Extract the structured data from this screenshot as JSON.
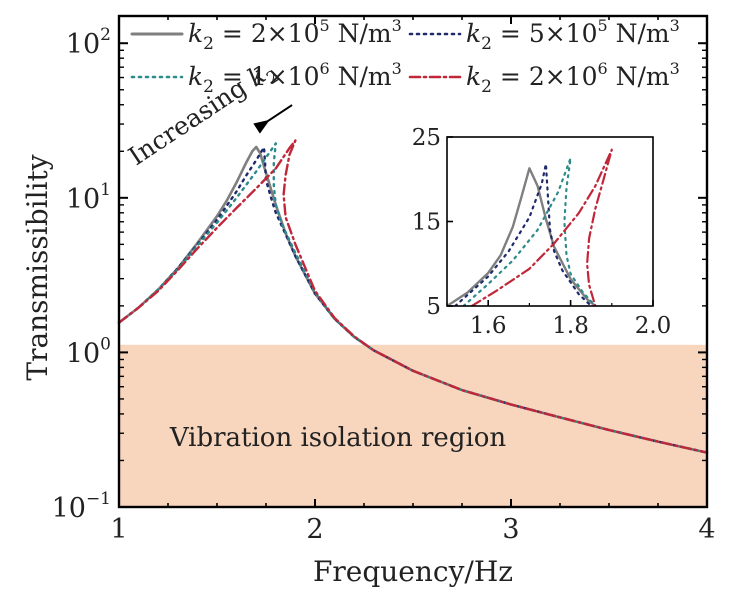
{
  "chart_data": [
    {
      "type": "line",
      "xlabel": "Frequency/Hz",
      "ylabel": "Transmissibility",
      "x_scale": "linear",
      "y_scale": "log",
      "xlim": [
        1,
        4
      ],
      "ylim": [
        0.1,
        150
      ],
      "x_ticks": [
        {
          "value": 1,
          "label": "1"
        },
        {
          "value": 2,
          "label": "2"
        },
        {
          "value": 3,
          "label": "3"
        },
        {
          "value": 4,
          "label": "4"
        }
      ],
      "y_ticks": [
        {
          "value": 0.1,
          "base": "10",
          "exp": "−1"
        },
        {
          "value": 1,
          "base": "10",
          "exp": "0"
        },
        {
          "value": 10,
          "base": "10",
          "exp": "1"
        },
        {
          "value": 100,
          "base": "10",
          "exp": "2"
        }
      ],
      "grid": false,
      "legend_position": "top",
      "shaded_region": {
        "y_from": 0.1,
        "y_to": 1.12,
        "color": "#f8d5bd",
        "label": "Vibration isolation region"
      },
      "annotation": {
        "text": "Increasing ",
        "italic": "k",
        "sub": "2",
        "x_from": 1.5,
        "y_from": 19,
        "x_to": 1.77,
        "y_to": 32
      },
      "series": [
        {
          "legend_sym": "k",
          "legend_sub": "2",
          "legend_text": " = 2×10",
          "legend_exp": "5",
          "legend_unit": " N/m",
          "legend_unit_exp": "3",
          "color": "#7f7f7f",
          "style": "solid",
          "points": [
            [
              1.0,
              1.56
            ],
            [
              1.1,
              1.95
            ],
            [
              1.2,
              2.55
            ],
            [
              1.3,
              3.5
            ],
            [
              1.4,
              5.1
            ],
            [
              1.5,
              7.6
            ],
            [
              1.55,
              9.6
            ],
            [
              1.6,
              12.6
            ],
            [
              1.65,
              17.0
            ],
            [
              1.68,
              20.0
            ],
            [
              1.7,
              21.3
            ],
            [
              1.72,
              19.5
            ],
            [
              1.75,
              14.5
            ],
            [
              1.8,
              9.0
            ],
            [
              1.85,
              5.9
            ],
            [
              1.9,
              4.2
            ],
            [
              2.0,
              2.4
            ],
            [
              2.1,
              1.65
            ],
            [
              2.2,
              1.26
            ],
            [
              2.3,
              1.03
            ],
            [
              2.5,
              0.76
            ],
            [
              2.75,
              0.57
            ],
            [
              3.0,
              0.46
            ],
            [
              3.25,
              0.38
            ],
            [
              3.5,
              0.315
            ],
            [
              3.75,
              0.265
            ],
            [
              4.0,
              0.225
            ]
          ]
        },
        {
          "legend_sym": "k",
          "legend_sub": "2",
          "legend_text": " = 5×10",
          "legend_exp": "5",
          "legend_unit": " N/m",
          "legend_unit_exp": "3",
          "color": "#1f2a6b",
          "style": "dotted",
          "points": [
            [
              1.0,
              1.56
            ],
            [
              1.1,
              1.95
            ],
            [
              1.2,
              2.55
            ],
            [
              1.3,
              3.5
            ],
            [
              1.4,
              5.0
            ],
            [
              1.5,
              7.2
            ],
            [
              1.6,
              11.0
            ],
            [
              1.65,
              14.0
            ],
            [
              1.7,
              17.5
            ],
            [
              1.74,
              21.2
            ],
            [
              1.745,
              17.0
            ],
            [
              1.75,
              13.0
            ],
            [
              1.78,
              9.6
            ],
            [
              1.8,
              8.0
            ],
            [
              1.85,
              5.8
            ],
            [
              1.9,
              4.2
            ],
            [
              2.0,
              2.4
            ],
            [
              2.1,
              1.65
            ],
            [
              2.2,
              1.26
            ],
            [
              2.3,
              1.03
            ],
            [
              2.5,
              0.76
            ],
            [
              2.75,
              0.57
            ],
            [
              3.0,
              0.46
            ],
            [
              3.25,
              0.38
            ],
            [
              3.5,
              0.315
            ],
            [
              3.75,
              0.265
            ],
            [
              4.0,
              0.225
            ]
          ]
        },
        {
          "legend_sym": "k",
          "legend_sub": "2",
          "legend_text": " = 1×10",
          "legend_exp": "6",
          "legend_unit": " N/m",
          "legend_unit_exp": "3",
          "color": "#2e8b8b",
          "style": "dotted",
          "points": [
            [
              1.0,
              1.56
            ],
            [
              1.1,
              1.95
            ],
            [
              1.2,
              2.55
            ],
            [
              1.3,
              3.45
            ],
            [
              1.4,
              4.9
            ],
            [
              1.5,
              6.9
            ],
            [
              1.6,
              10.0
            ],
            [
              1.7,
              14.8
            ],
            [
              1.76,
              19.0
            ],
            [
              1.8,
              22.5
            ],
            [
              1.79,
              17.0
            ],
            [
              1.79,
              12.0
            ],
            [
              1.8,
              9.0
            ],
            [
              1.83,
              6.8
            ],
            [
              1.9,
              4.4
            ],
            [
              2.0,
              2.45
            ],
            [
              2.1,
              1.65
            ],
            [
              2.2,
              1.26
            ],
            [
              2.3,
              1.03
            ],
            [
              2.5,
              0.76
            ],
            [
              2.75,
              0.57
            ],
            [
              3.0,
              0.46
            ],
            [
              3.25,
              0.38
            ],
            [
              3.5,
              0.315
            ],
            [
              3.75,
              0.265
            ],
            [
              4.0,
              0.225
            ]
          ]
        },
        {
          "legend_sym": "k",
          "legend_sub": "2",
          "legend_text": " = 2×10",
          "legend_exp": "6",
          "legend_unit": " N/m",
          "legend_unit_exp": "3",
          "color": "#c0283a",
          "style": "dashdot",
          "points": [
            [
              1.0,
              1.56
            ],
            [
              1.1,
              1.95
            ],
            [
              1.2,
              2.5
            ],
            [
              1.3,
              3.4
            ],
            [
              1.4,
              4.7
            ],
            [
              1.5,
              6.4
            ],
            [
              1.6,
              8.6
            ],
            [
              1.7,
              11.5
            ],
            [
              1.8,
              15.5
            ],
            [
              1.87,
              21.0
            ],
            [
              1.9,
              23.5
            ],
            [
              1.87,
              19.0
            ],
            [
              1.85,
              14.0
            ],
            [
              1.84,
              10.5
            ],
            [
              1.85,
              7.5
            ],
            [
              1.9,
              5.0
            ],
            [
              2.0,
              2.5
            ],
            [
              2.1,
              1.67
            ],
            [
              2.2,
              1.27
            ],
            [
              2.3,
              1.03
            ],
            [
              2.5,
              0.76
            ],
            [
              2.75,
              0.57
            ],
            [
              3.0,
              0.46
            ],
            [
              3.25,
              0.38
            ],
            [
              3.5,
              0.315
            ],
            [
              3.75,
              0.265
            ],
            [
              4.0,
              0.225
            ]
          ]
        }
      ]
    },
    {
      "type": "line",
      "role": "inset",
      "x_scale": "linear",
      "y_scale": "linear",
      "xlim": [
        1.5,
        2.0
      ],
      "ylim": [
        5,
        25
      ],
      "x_ticks": [
        {
          "value": 1.6,
          "label": "1.6"
        },
        {
          "value": 1.8,
          "label": "1.8"
        },
        {
          "value": 2.0,
          "label": "2.0"
        }
      ],
      "y_ticks": [
        {
          "value": 5,
          "label": "5"
        },
        {
          "value": 15,
          "label": "15"
        },
        {
          "value": 25,
          "label": "25"
        }
      ],
      "series": [
        {
          "color": "#7f7f7f",
          "style": "solid",
          "points": [
            [
              1.5,
              5.0
            ],
            [
              1.55,
              6.6
            ],
            [
              1.6,
              8.9
            ],
            [
              1.63,
              11.0
            ],
            [
              1.66,
              14.4
            ],
            [
              1.68,
              17.8
            ],
            [
              1.7,
              21.3
            ],
            [
              1.72,
              19.2
            ],
            [
              1.74,
              15.3
            ],
            [
              1.76,
              12.0
            ],
            [
              1.8,
              8.2
            ],
            [
              1.84,
              5.8
            ],
            [
              1.86,
              5.0
            ]
          ]
        },
        {
          "color": "#1f2a6b",
          "style": "dotted",
          "points": [
            [
              1.52,
              5.0
            ],
            [
              1.6,
              8.5
            ],
            [
              1.65,
              11.5
            ],
            [
              1.7,
              15.5
            ],
            [
              1.73,
              19.5
            ],
            [
              1.74,
              21.8
            ],
            [
              1.745,
              18.0
            ],
            [
              1.75,
              14.0
            ],
            [
              1.76,
              11.5
            ],
            [
              1.78,
              9.2
            ],
            [
              1.82,
              6.4
            ],
            [
              1.85,
              5.0
            ]
          ]
        },
        {
          "color": "#2e8b8b",
          "style": "dotted",
          "points": [
            [
              1.54,
              5.0
            ],
            [
              1.6,
              7.6
            ],
            [
              1.66,
              10.4
            ],
            [
              1.72,
              14.0
            ],
            [
              1.77,
              18.5
            ],
            [
              1.8,
              22.5
            ],
            [
              1.79,
              19.0
            ],
            [
              1.785,
              15.0
            ],
            [
              1.79,
              11.0
            ],
            [
              1.8,
              8.8
            ],
            [
              1.83,
              6.6
            ],
            [
              1.86,
              5.0
            ]
          ]
        },
        {
          "color": "#c0283a",
          "style": "dashdot",
          "points": [
            [
              1.56,
              5.0
            ],
            [
              1.62,
              6.8
            ],
            [
              1.7,
              9.4
            ],
            [
              1.76,
              12.4
            ],
            [
              1.82,
              16.0
            ],
            [
              1.86,
              19.2
            ],
            [
              1.9,
              23.5
            ],
            [
              1.88,
              20.0
            ],
            [
              1.86,
              16.5
            ],
            [
              1.845,
              13.0
            ],
            [
              1.84,
              10.0
            ],
            [
              1.845,
              7.5
            ],
            [
              1.855,
              5.8
            ],
            [
              1.86,
              5.0
            ]
          ]
        }
      ]
    }
  ]
}
